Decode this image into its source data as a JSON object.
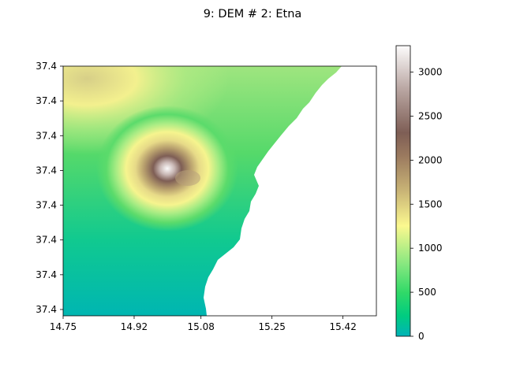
{
  "chart_data": {
    "type": "heatmap",
    "title": "9: DEM # 2: Etna",
    "xlabel": "",
    "ylabel": "",
    "x_ticks": [
      "14.75",
      "14.92",
      "15.08",
      "15.25",
      "15.42"
    ],
    "x_tick_values": [
      14.75,
      14.92,
      15.08,
      15.25,
      15.42
    ],
    "x_range": [
      14.75,
      15.5
    ],
    "y_ticks": [
      "37.4",
      "37.4",
      "37.4",
      "37.4",
      "37.4",
      "37.4",
      "37.4",
      "37.4"
    ],
    "colorbar": {
      "colormap": "terrain",
      "range": [
        0,
        3300
      ],
      "ticks": [
        0,
        500,
        1000,
        1500,
        2000,
        2500,
        3000
      ],
      "tick_labels": [
        "0",
        "500",
        "1000",
        "1500",
        "2000",
        "2500",
        "3000"
      ]
    },
    "features": {
      "summit_elevation": 3300,
      "sea_level": 0,
      "no_data_color": "#ffffff"
    }
  }
}
